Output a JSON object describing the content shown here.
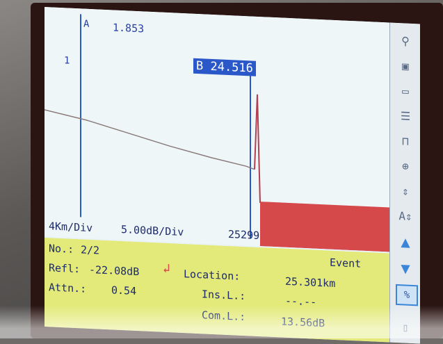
{
  "plot": {
    "marker_a_label": "A",
    "marker_a_value": "1.853",
    "marker_one": "1",
    "cursor_b_label": "B 24.516"
  },
  "scale": {
    "horizontal": "4Km/Div",
    "vertical": "5.00dB/Div",
    "count": "25299"
  },
  "event": {
    "no_label": "No.:",
    "no_value": "2/2",
    "title": "Event",
    "refl_label": "Refl:",
    "refl_value": "-22.08dB",
    "location_label": "Location:",
    "location_value": "25.301km",
    "atten_label": "Attn.:",
    "atten_value": "0.54",
    "insl_label": "Ins.L.:",
    "insl_value": "--.--",
    "comp_label": "Com.L.:",
    "comp_value": "13.56dB",
    "marker_icon": "red-arrow-icon"
  },
  "toolbar": [
    {
      "name": "search-icon",
      "glyph": "⚲"
    },
    {
      "name": "save-icon",
      "glyph": "▣"
    },
    {
      "name": "folder-open-icon",
      "glyph": "▭"
    },
    {
      "name": "document-icon",
      "glyph": "☰"
    },
    {
      "name": "pulse-icon",
      "glyph": "⊓"
    },
    {
      "name": "zoom-icon",
      "glyph": "⊕"
    },
    {
      "name": "vertical-scale-icon",
      "glyph": "⇕"
    },
    {
      "name": "auto-scale-icon",
      "glyph": "A⇕"
    },
    {
      "name": "arrow-up-icon",
      "glyph": "▲"
    },
    {
      "name": "arrow-down-icon",
      "glyph": "▼"
    },
    {
      "name": "toggle-icon",
      "glyph": "%"
    },
    {
      "name": "battery-icon",
      "glyph": "▯"
    }
  ],
  "colors": {
    "trace": "#ffffff",
    "noise": "#d6494a",
    "cursor": "#2a58c8",
    "panel": "#e3ea7a"
  }
}
